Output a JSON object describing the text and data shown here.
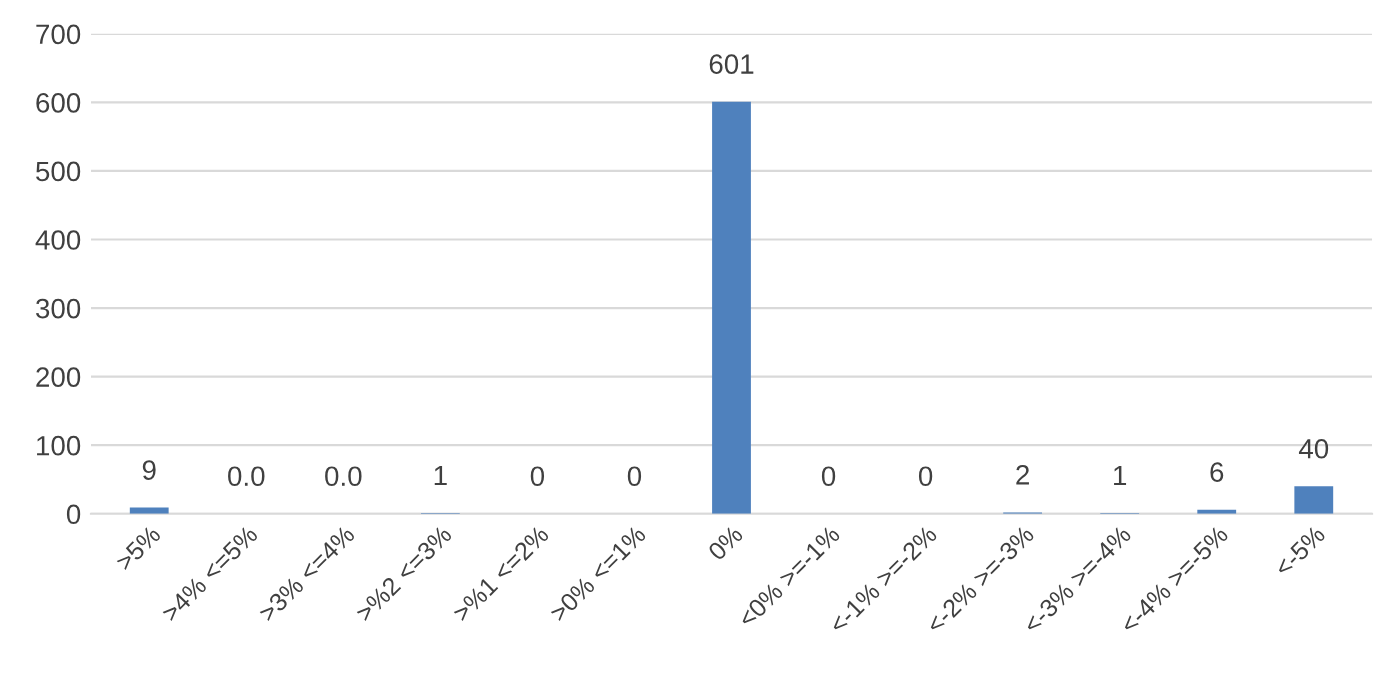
{
  "chart_data": {
    "type": "bar",
    "categories": [
      ">5%",
      ">4% <=5%",
      ">3% <=4%",
      ">%2 <=3%",
      ">%1 <=2%",
      ">0% <=1%",
      "0%",
      "<0% >=-1%",
      "<-1% >=-2%",
      "<-2% >=-3%",
      "<-3% >=-4%",
      "<-4% >=-5%",
      "<-5%"
    ],
    "values": [
      9,
      0,
      0,
      1,
      0,
      0,
      601,
      0,
      0,
      2,
      1,
      6,
      40
    ],
    "value_labels": [
      "9",
      "0.0",
      "0.0",
      "1",
      "0",
      "0",
      "601",
      "0",
      "0",
      "2",
      "1",
      "6",
      "40"
    ],
    "color": "#4f81bd",
    "ylim": [
      0,
      700
    ],
    "yticks": [
      0,
      100,
      200,
      300,
      400,
      500,
      600,
      700
    ],
    "grid": "y"
  }
}
